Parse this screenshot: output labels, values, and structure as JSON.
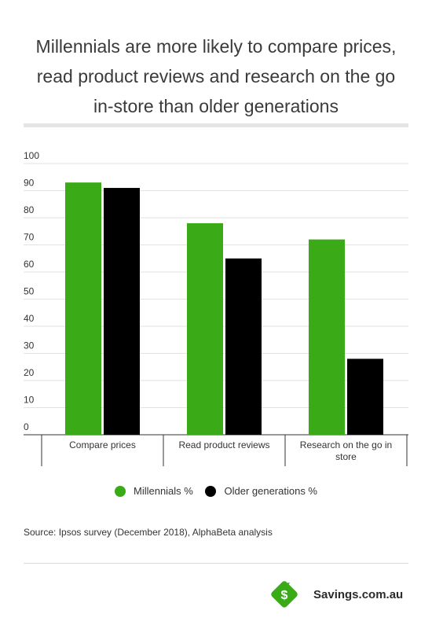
{
  "title_lines": [
    "Millennials are more likely to compare prices,",
    "read product reviews and research on the go",
    "in-store than older generations"
  ],
  "chart_data": {
    "type": "bar",
    "categories": [
      "Compare prices",
      "Read product reviews",
      "Research on the go in store"
    ],
    "series": [
      {
        "name": "Millennials %",
        "values": [
          93,
          78,
          72
        ],
        "color": "#3aaa17"
      },
      {
        "name": "Older generations %",
        "values": [
          91,
          65,
          28
        ],
        "color": "#000000"
      }
    ],
    "ylim": [
      0,
      100
    ],
    "yticks": [
      0,
      10,
      20,
      30,
      40,
      50,
      60,
      70,
      80,
      90,
      100
    ],
    "grid": true,
    "legend_position": "bottom-center"
  },
  "source": "Source: Ipsos survey (December 2018), AlphaBeta analysis",
  "brand": {
    "name": "Savings.com.au",
    "logo_letter": "$",
    "logo_color": "#3aaa17"
  }
}
